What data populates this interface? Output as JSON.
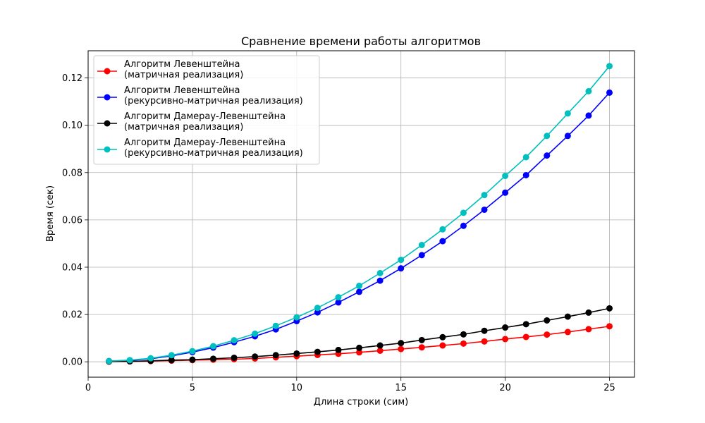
{
  "chart_data": {
    "type": "line",
    "title": "Сравнение времени работы алгоритмов",
    "xlabel": "Длина строки (сим)",
    "ylabel": "Время (сек)",
    "xlim": [
      0.0,
      26.2
    ],
    "ylim": [
      -0.0065,
      0.1315
    ],
    "xticks": [
      0,
      5,
      10,
      15,
      20,
      25
    ],
    "yticks": [
      0.0,
      0.02,
      0.04,
      0.06,
      0.08,
      0.1,
      0.12
    ],
    "xtick_labels": [
      "0",
      "5",
      "10",
      "15",
      "20",
      "25"
    ],
    "ytick_labels": [
      "0.00",
      "0.02",
      "0.04",
      "0.06",
      "0.08",
      "0.10",
      "0.12"
    ],
    "grid": true,
    "legend_position": "upper-left",
    "x": [
      1,
      2,
      3,
      4,
      5,
      6,
      7,
      8,
      9,
      10,
      11,
      12,
      13,
      14,
      15,
      16,
      17,
      18,
      19,
      20,
      21,
      22,
      23,
      24,
      25
    ],
    "series": [
      {
        "name_lines": [
          "Алгоритм Левенштейна",
          "(матричная реализация)"
        ],
        "color": "#ff0000",
        "values": [
          0.0001,
          0.0002,
          0.0003,
          0.0005,
          0.0007,
          0.0009,
          0.0011,
          0.0014,
          0.0019,
          0.0024,
          0.0029,
          0.0034,
          0.004,
          0.0047,
          0.0054,
          0.0061,
          0.0069,
          0.0077,
          0.0086,
          0.0096,
          0.0105,
          0.0115,
          0.0126,
          0.0138,
          0.015
        ]
      },
      {
        "name_lines": [
          "Алгоритм Левенштейна",
          "(рекурсивно-матричная реализация)"
        ],
        "color": "#0000ff",
        "values": [
          0.0003,
          0.0006,
          0.0013,
          0.0025,
          0.0041,
          0.006,
          0.0083,
          0.0108,
          0.0137,
          0.0172,
          0.0209,
          0.0251,
          0.0296,
          0.0343,
          0.0395,
          0.0451,
          0.051,
          0.0575,
          0.0643,
          0.0715,
          0.0789,
          0.0872,
          0.0955,
          0.1041,
          0.1138
        ]
      },
      {
        "name_lines": [
          "Алгоритм Дамерау-Левенштейна",
          "(матричная реализация)"
        ],
        "color": "#000000",
        "values": [
          0.0001,
          0.0002,
          0.0004,
          0.0007,
          0.0009,
          0.0013,
          0.0017,
          0.0022,
          0.0028,
          0.0035,
          0.0042,
          0.005,
          0.0059,
          0.0069,
          0.0079,
          0.0092,
          0.0104,
          0.0116,
          0.0131,
          0.0145,
          0.0159,
          0.0175,
          0.0191,
          0.0208,
          0.0226
        ]
      },
      {
        "name_lines": [
          "Алгоритм Дамерау-Левенштейна",
          "(рекурсивно-матричная реализация)"
        ],
        "color": "#00bfbf",
        "values": [
          0.0003,
          0.0007,
          0.0015,
          0.0028,
          0.0045,
          0.0066,
          0.0091,
          0.0119,
          0.0152,
          0.0188,
          0.0228,
          0.0273,
          0.0321,
          0.0375,
          0.0431,
          0.0494,
          0.056,
          0.063,
          0.0705,
          0.0786,
          0.0865,
          0.0955,
          0.105,
          0.1144,
          0.125
        ]
      }
    ]
  }
}
